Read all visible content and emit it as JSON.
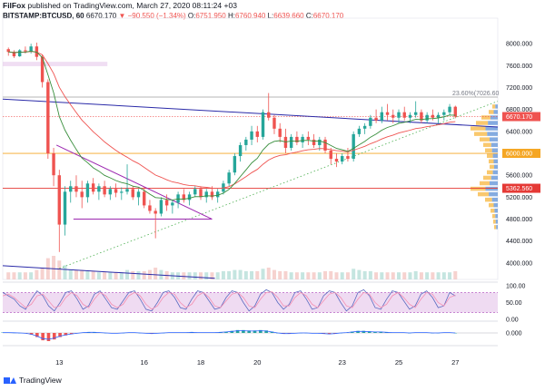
{
  "header": {
    "brand": "FilFox",
    "published_text": " published on TradingView.com, March 27, 2020 08:11:24 +03",
    "symbol": "BITSTAMP:BTCUSD, 60",
    "last_price": "6670.170",
    "change": "▼ −90.550 (−1.34%)",
    "o_label": "O:",
    "o_value": "6751.950",
    "h_label": "H:",
    "h_value": "6760.940",
    "l_label": "L:",
    "l_value": "6639.660",
    "c_label": "C:",
    "c_value": "6670.170"
  },
  "footer": {
    "logo_text": "TradingView"
  },
  "colors": {
    "up": "#26a69a",
    "down": "#ef5350",
    "resistance": "#2a2aa8",
    "fib": "#9e9e9e",
    "triangle": "#9c27b0",
    "ema": "#388e3c",
    "ema_slow": "#ef5350",
    "volume_profile_red": "#f7b53c",
    "volume_profile_blue": "#5b8fd6",
    "level_6000": "#f5a623",
    "level_5362": "#e53935",
    "last_price_badge": "#ef5350"
  },
  "chart_data": [
    {
      "type": "candlestick",
      "title": "",
      "symbol": "BITSTAMP:BTCUSD",
      "interval": "60",
      "y_ticks": [
        4000,
        4400,
        4800,
        5200,
        5600,
        6000,
        6400,
        6800,
        7200,
        7600,
        8000
      ],
      "y_tick_labels": [
        "4000.000",
        "4400.000",
        "4800.000",
        "5200.000",
        "5600.000",
        "6000.000",
        "6400.000",
        "6800.000",
        "7200.000",
        "7600.000",
        "8000.000"
      ],
      "ylim": [
        3700,
        8400
      ],
      "x_tick_labels": [
        "13",
        "16",
        "18",
        "20",
        "23",
        "25",
        "27"
      ],
      "x_ticks_day": [
        13,
        16,
        18,
        20,
        23,
        25,
        27
      ],
      "xlim_day": [
        11.0,
        28.5
      ],
      "price_tags": [
        {
          "label": "6670.170",
          "value": 6670.17,
          "kind": "last"
        },
        {
          "label": "6000.000",
          "value": 6000,
          "kind": "level"
        },
        {
          "label": "5362.560",
          "value": 5362.56,
          "kind": "level2"
        }
      ],
      "fib_label": "23.60%(7026.60",
      "fib_value": 7026.6,
      "horizontal_levels": [
        6000,
        5362.56
      ],
      "candles": [
        [
          11.2,
          7900,
          7930,
          7780,
          7850
        ],
        [
          11.4,
          7850,
          7880,
          7740,
          7770
        ],
        [
          11.6,
          7770,
          7900,
          7760,
          7880
        ],
        [
          11.8,
          7880,
          7950,
          7820,
          7860
        ],
        [
          12.0,
          7860,
          8000,
          7820,
          7950
        ],
        [
          12.2,
          7950,
          8020,
          7700,
          7760
        ],
        [
          12.4,
          7760,
          7800,
          7200,
          7300
        ],
        [
          12.6,
          7300,
          7350,
          5900,
          6000
        ],
        [
          12.8,
          6000,
          6100,
          5400,
          5600
        ],
        [
          13.0,
          5600,
          5700,
          4200,
          4700
        ],
        [
          13.2,
          4700,
          5400,
          4500,
          5300
        ],
        [
          13.4,
          5300,
          5500,
          5100,
          5400
        ],
        [
          13.6,
          5400,
          5600,
          5200,
          5300
        ],
        [
          13.8,
          5300,
          5500,
          5000,
          5200
        ],
        [
          14.0,
          5200,
          5500,
          5100,
          5450
        ],
        [
          14.2,
          5450,
          5550,
          5250,
          5300
        ],
        [
          14.4,
          5300,
          5450,
          5150,
          5400
        ],
        [
          14.6,
          5400,
          5500,
          5200,
          5250
        ],
        [
          14.8,
          5250,
          5400,
          5150,
          5350
        ],
        [
          15.0,
          5350,
          5450,
          5200,
          5280
        ],
        [
          15.2,
          5280,
          5380,
          5150,
          5300
        ],
        [
          15.4,
          5300,
          5800,
          5250,
          5350
        ],
        [
          15.6,
          5350,
          5400,
          5150,
          5200
        ],
        [
          15.8,
          5200,
          5350,
          5050,
          5300
        ],
        [
          16.0,
          5300,
          5380,
          5000,
          5050
        ],
        [
          16.2,
          5050,
          5150,
          4900,
          4950
        ],
        [
          16.4,
          4950,
          5000,
          4450,
          4900
        ],
        [
          16.6,
          4900,
          5200,
          4850,
          5150
        ],
        [
          16.8,
          5150,
          5250,
          4950,
          5050
        ],
        [
          17.0,
          5050,
          5150,
          4900,
          5100
        ],
        [
          17.2,
          5100,
          5300,
          5000,
          5250
        ],
        [
          17.4,
          5250,
          5350,
          5100,
          5150
        ],
        [
          17.6,
          5150,
          5300,
          5050,
          5250
        ],
        [
          17.8,
          5250,
          5400,
          5200,
          5350
        ],
        [
          18.0,
          5350,
          5400,
          5150,
          5200
        ],
        [
          18.2,
          5200,
          5350,
          5100,
          5300
        ],
        [
          18.4,
          5300,
          5400,
          5150,
          5200
        ],
        [
          18.6,
          5200,
          5350,
          5100,
          5300
        ],
        [
          18.8,
          5300,
          5500,
          5250,
          5450
        ],
        [
          19.0,
          5450,
          5700,
          5400,
          5650
        ],
        [
          19.2,
          5650,
          6000,
          5600,
          5950
        ],
        [
          19.4,
          5950,
          6200,
          5850,
          6150
        ],
        [
          19.6,
          6150,
          6300,
          6050,
          6250
        ],
        [
          19.8,
          6250,
          6500,
          6150,
          6400
        ],
        [
          20.0,
          6400,
          6500,
          6200,
          6300
        ],
        [
          20.2,
          6300,
          6800,
          6250,
          6750
        ],
        [
          20.4,
          6750,
          7100,
          6600,
          6650
        ],
        [
          20.6,
          6650,
          6700,
          6350,
          6450
        ],
        [
          20.8,
          6450,
          6550,
          6200,
          6300
        ],
        [
          21.0,
          6300,
          6450,
          6000,
          6100
        ],
        [
          21.2,
          6100,
          6350,
          6050,
          6300
        ],
        [
          21.4,
          6300,
          6400,
          6150,
          6200
        ],
        [
          21.6,
          6200,
          6350,
          6100,
          6300
        ],
        [
          21.8,
          6300,
          6400,
          6150,
          6250
        ],
        [
          22.0,
          6250,
          6350,
          6100,
          6150
        ],
        [
          22.2,
          6150,
          6300,
          6050,
          6250
        ],
        [
          22.4,
          6250,
          6300,
          6000,
          6050
        ],
        [
          22.6,
          6050,
          6100,
          5800,
          5900
        ],
        [
          22.8,
          5900,
          6000,
          5750,
          5850
        ],
        [
          23.0,
          5850,
          6000,
          5800,
          5950
        ],
        [
          23.2,
          5950,
          6100,
          5850,
          5900
        ],
        [
          23.4,
          5900,
          6400,
          5850,
          6350
        ],
        [
          23.6,
          6350,
          6500,
          6300,
          6450
        ],
        [
          23.8,
          6450,
          6550,
          6350,
          6500
        ],
        [
          24.0,
          6500,
          6700,
          6450,
          6650
        ],
        [
          24.2,
          6650,
          6800,
          6550,
          6600
        ],
        [
          24.4,
          6600,
          6850,
          6550,
          6750
        ],
        [
          24.6,
          6750,
          6900,
          6600,
          6700
        ],
        [
          24.8,
          6700,
          6800,
          6550,
          6650
        ],
        [
          25.0,
          6650,
          6800,
          6550,
          6750
        ],
        [
          25.2,
          6750,
          6850,
          6600,
          6650
        ],
        [
          25.4,
          6650,
          6750,
          6550,
          6700
        ],
        [
          25.6,
          6700,
          6950,
          6650,
          6750
        ],
        [
          25.8,
          6750,
          6800,
          6550,
          6600
        ],
        [
          26.0,
          6600,
          6750,
          6550,
          6700
        ],
        [
          26.2,
          6700,
          6800,
          6600,
          6650
        ],
        [
          26.4,
          6650,
          6750,
          6550,
          6700
        ],
        [
          26.6,
          6700,
          6800,
          6600,
          6750
        ],
        [
          26.8,
          6750,
          6900,
          6700,
          6850
        ],
        [
          27.0,
          6850,
          6870,
          6640,
          6670
        ]
      ],
      "volume": [
        0.3,
        0.3,
        0.3,
        0.3,
        0.3,
        0.4,
        0.5,
        0.9,
        1.0,
        0.8,
        0.6,
        0.4,
        0.4,
        0.4,
        0.35,
        0.35,
        0.3,
        0.3,
        0.3,
        0.3,
        0.3,
        0.4,
        0.35,
        0.35,
        0.35,
        0.4,
        0.5,
        0.4,
        0.35,
        0.3,
        0.3,
        0.3,
        0.3,
        0.3,
        0.3,
        0.3,
        0.3,
        0.3,
        0.35,
        0.35,
        0.4,
        0.4,
        0.35,
        0.35,
        0.35,
        0.45,
        0.5,
        0.4,
        0.35,
        0.35,
        0.3,
        0.3,
        0.3,
        0.3,
        0.3,
        0.3,
        0.35,
        0.35,
        0.3,
        0.3,
        0.3,
        0.45,
        0.4,
        0.35,
        0.35,
        0.3,
        0.3,
        0.3,
        0.3,
        0.3,
        0.3,
        0.3,
        0.35,
        0.3,
        0.3,
        0.3,
        0.3,
        0.3,
        0.3,
        0.35
      ]
    },
    {
      "type": "line",
      "title": "",
      "y_tick_labels": [
        "100.00",
        "50.00",
        "0.00"
      ],
      "y_ticks": [
        100,
        50,
        0
      ],
      "ylim": [
        0,
        100
      ],
      "band": [
        20,
        80
      ],
      "series": [
        {
          "values": [
            80,
            70,
            60,
            40,
            30,
            60,
            85,
            70,
            40,
            25,
            50,
            80,
            85,
            60,
            30,
            40,
            75,
            85,
            60,
            35,
            30,
            55,
            80,
            85,
            60,
            30,
            25,
            50,
            80,
            85,
            65,
            35,
            30,
            60,
            85,
            80,
            55,
            30,
            35,
            65,
            85,
            80,
            50,
            25,
            40,
            75,
            88,
            80,
            50,
            30,
            45,
            80,
            85,
            60,
            30,
            35,
            70,
            85,
            80,
            50,
            25,
            40,
            80,
            88,
            70,
            35,
            30,
            60,
            85,
            80,
            55,
            30,
            40,
            75,
            85,
            65,
            35,
            40,
            80,
            70
          ]
        },
        {
          "values": [
            70,
            75,
            65,
            50,
            35,
            45,
            70,
            75,
            55,
            35,
            40,
            65,
            80,
            70,
            45,
            35,
            60,
            80,
            70,
            45,
            35,
            45,
            70,
            80,
            70,
            45,
            30,
            40,
            65,
            80,
            75,
            50,
            35,
            45,
            70,
            80,
            65,
            40,
            35,
            55,
            75,
            80,
            65,
            40,
            35,
            60,
            80,
            82,
            65,
            40,
            40,
            65,
            80,
            70,
            45,
            35,
            55,
            75,
            80,
            65,
            40,
            35,
            60,
            80,
            75,
            50,
            35,
            45,
            70,
            80,
            65,
            45,
            35,
            60,
            80,
            75,
            50,
            40,
            65,
            72
          ]
        }
      ]
    },
    {
      "type": "bar",
      "title": "",
      "y_tick_labels": [
        "0.000"
      ],
      "y_ticks": [
        0
      ],
      "values": [
        0.05,
        0.05,
        0.03,
        0.0,
        -0.05,
        -0.2,
        -0.5,
        -0.9,
        -1.0,
        -0.8,
        -0.5,
        -0.3,
        -0.15,
        -0.05,
        0.05,
        0.1,
        0.1,
        0.05,
        0.0,
        -0.05,
        -0.05,
        0.0,
        0.05,
        0.05,
        0.0,
        -0.05,
        -0.1,
        -0.05,
        0.0,
        0.05,
        0.05,
        0.05,
        0.05,
        0.1,
        0.05,
        0.05,
        0.05,
        0.05,
        0.1,
        0.15,
        0.25,
        0.35,
        0.35,
        0.3,
        0.3,
        0.35,
        0.3,
        0.15,
        0.0,
        -0.1,
        -0.1,
        -0.05,
        0.0,
        0.0,
        -0.05,
        -0.05,
        -0.1,
        -0.15,
        -0.1,
        0.0,
        0.05,
        0.15,
        0.25,
        0.25,
        0.2,
        0.15,
        0.15,
        0.1,
        0.05,
        0.05,
        0.05,
        0.0,
        0.05,
        0.05,
        0.05,
        0.0,
        0.0,
        0.05,
        0.05,
        0.0
      ]
    }
  ]
}
